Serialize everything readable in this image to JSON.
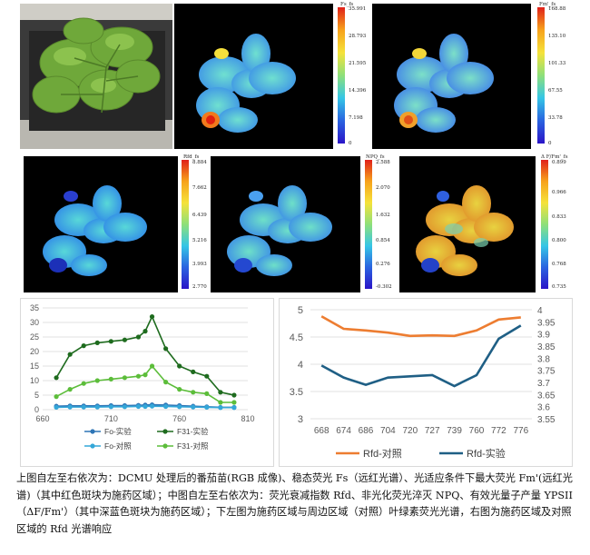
{
  "top_row": [
    {
      "id": "rgb"
    },
    {
      "id": "fs",
      "title": "Fs_fs",
      "ticks": [
        "35.991",
        "28.793",
        "21.595",
        "14.396",
        "7.198",
        "0"
      ]
    },
    {
      "id": "fm",
      "title": "Fm'_fs",
      "ticks": [
        "168.88",
        "135.10",
        "101.33",
        "67.55",
        "33.78",
        "0"
      ]
    }
  ],
  "mid_row": [
    {
      "id": "rfd",
      "title": "Rfd_fs",
      "ticks": [
        "8.884",
        "7.662",
        "6.439",
        "5.216",
        "3.993",
        "2.770"
      ]
    },
    {
      "id": "npq",
      "title": "NPQ_fs",
      "ticks": [
        "2.588",
        "2.070",
        "1.632",
        "0.854",
        "0.276",
        "-0.302"
      ]
    },
    {
      "id": "ypsii",
      "title": "Δ F/Fm'_fs",
      "ticks": [
        "0.899",
        "0.966",
        "0.833",
        "0.800",
        "0.768",
        "0.735"
      ]
    }
  ],
  "colors": {
    "fo_exp": "#2e75b6",
    "f31_exp": "#1e6b1e",
    "fo_ctrl": "#34a7d8",
    "f31_ctrl": "#5cbd3a",
    "rfd_ctrl": "#ed7d31",
    "rfd_exp": "#1f5f85"
  },
  "chart_data": [
    {
      "type": "line",
      "x": [
        670,
        680,
        690,
        700,
        710,
        720,
        730,
        735,
        740,
        750,
        760,
        770,
        780,
        790,
        800
      ],
      "xticks": [
        "660",
        "710",
        "760",
        "810"
      ],
      "yticks": [
        "0",
        "5",
        "10",
        "15",
        "20",
        "25",
        "30",
        "35"
      ],
      "xlim": [
        660,
        810
      ],
      "ylim": [
        0,
        35
      ],
      "series": [
        {
          "name": "Fo-实验",
          "values": [
            1.2,
            1.3,
            1.3,
            1.3,
            1.4,
            1.4,
            1.5,
            1.6,
            1.7,
            1.6,
            1.4,
            1.2,
            1.0,
            0.8,
            0.8
          ]
        },
        {
          "name": "F31-实验",
          "values": [
            11,
            19,
            22,
            23,
            23.5,
            24,
            25,
            27,
            32,
            21,
            15,
            13,
            11.5,
            6,
            5
          ]
        },
        {
          "name": "Fo-对照",
          "values": [
            0.8,
            0.9,
            0.9,
            0.9,
            1.0,
            1.0,
            1.1,
            1.1,
            1.2,
            1.1,
            1.0,
            0.9,
            0.8,
            0.7,
            0.7
          ]
        },
        {
          "name": "F31-对照",
          "values": [
            4.5,
            7,
            9,
            10,
            10.5,
            11,
            11.5,
            12,
            15,
            9.5,
            7,
            6,
            5.5,
            2.5,
            2.5
          ]
        }
      ],
      "legend": [
        "Fo-实验",
        "F31-实验",
        "Fo-对照",
        "F31-对照"
      ]
    },
    {
      "type": "line",
      "categories": [
        "668",
        "674",
        "686",
        "704",
        "720",
        "727",
        "739",
        "760",
        "772",
        "776"
      ],
      "yticks_left": [
        "3",
        "3.5",
        "4",
        "4.5",
        "5"
      ],
      "yticks_right": [
        "3.55",
        "3.6",
        "3.65",
        "3.7",
        "3.75",
        "3.8",
        "3.85",
        "3.9",
        "3.95",
        "4"
      ],
      "ylim_left": [
        3,
        5
      ],
      "ylim_right": [
        3.55,
        4
      ],
      "series": [
        {
          "name": "Rfd-对照",
          "axis": "left",
          "values": [
            4.88,
            4.65,
            4.62,
            4.58,
            4.52,
            4.53,
            4.52,
            4.62,
            4.82,
            4.86
          ]
        },
        {
          "name": "Rfd-实验",
          "axis": "right",
          "values": [
            3.77,
            3.72,
            3.69,
            3.72,
            3.725,
            3.73,
            3.685,
            3.73,
            3.88,
            3.935
          ]
        }
      ],
      "legend": [
        "Rfd-对照",
        "Rfd-实验"
      ]
    }
  ],
  "caption": "上图自左至右依次为：DCMU 处理后的番茄苗(RGB 成像)、稳态荧光 Fs（远红光谱）、光适应条件下最大荧光 Fm'(远红光谱)（其中红色斑块为施药区域）；中图自左至右依次为：荧光衰减指数 Rfd、非光化荧光淬灭 NPQ、有效光量子产量 YPSII（ΔF/Fm'）（其中深蓝色斑块为施药区域）；下左图为施药区域与周边区域（对照）叶绿素荧光光谱，右图为施药区域及对照区域的 Rfd 光谱响应"
}
